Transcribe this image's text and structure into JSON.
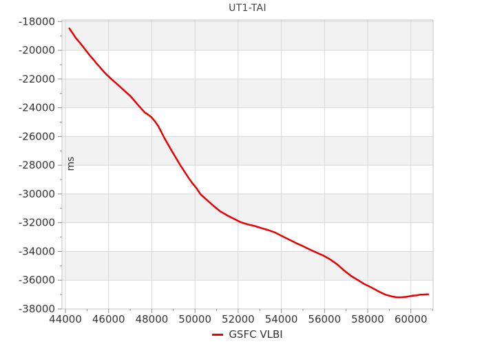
{
  "title": "UT1-TAI",
  "colors": {
    "background": "#ffffff",
    "band_gray": "#f2f2f2",
    "gridline": "#d8d8d8",
    "plot_border": "#c6c6c6",
    "tick_mark": "#8c8c8c",
    "tick_text": "#333333",
    "title_text": "#3f3f3f",
    "series_red": "#e80000"
  },
  "chart_data": {
    "type": "line",
    "title": "UT1-TAI",
    "xlabel": "",
    "ylabel": "ms",
    "grid": "major",
    "legend_position": "bottom-center",
    "legend": [
      {
        "label": "GSFC VLBI",
        "color": "#e80000"
      }
    ],
    "xlim": [
      43840,
      61030
    ],
    "ylim": [
      -38000,
      -17890
    ],
    "x_major_ticks": [
      44000,
      46000,
      48000,
      50000,
      52000,
      54000,
      56000,
      58000,
      60000
    ],
    "x_tick_labels": [
      "44000",
      "46000",
      "48000",
      "50000",
      "52000",
      "54000",
      "56000",
      "58000",
      "60000"
    ],
    "x_minor_ticks": [
      45000,
      47000,
      49000,
      51000,
      53000,
      55000,
      57000,
      59000,
      61000
    ],
    "y_major_ticks": [
      -18000,
      -20000,
      -22000,
      -24000,
      -26000,
      -28000,
      -30000,
      -32000,
      -34000,
      -36000,
      -38000
    ],
    "y_tick_labels": [
      "-18000",
      "-20000",
      "-22000",
      "-24000",
      "-26000",
      "-28000",
      "-30000",
      "-32000",
      "-34000",
      "-36000",
      "-38000"
    ],
    "y_minor_ticks": [
      -19000,
      -21000,
      -23000,
      -25000,
      -27000,
      -29000,
      -31000,
      -33000,
      -35000,
      -37000
    ],
    "shaded_bands": [
      [
        -20000,
        -17890
      ],
      [
        -24000,
        -22000
      ],
      [
        -28000,
        -26000
      ],
      [
        -32000,
        -30000
      ],
      [
        -36000,
        -34000
      ]
    ],
    "series": [
      {
        "name": "GSFC VLBI",
        "color": "#e80000",
        "points": [
          [
            44180,
            -18480
          ],
          [
            44350,
            -18850
          ],
          [
            44480,
            -19150
          ],
          [
            44650,
            -19440
          ],
          [
            44800,
            -19720
          ],
          [
            44960,
            -20030
          ],
          [
            45120,
            -20340
          ],
          [
            45280,
            -20620
          ],
          [
            45430,
            -20900
          ],
          [
            45600,
            -21180
          ],
          [
            45750,
            -21450
          ],
          [
            45900,
            -21680
          ],
          [
            46070,
            -21920
          ],
          [
            46230,
            -22140
          ],
          [
            46390,
            -22350
          ],
          [
            46550,
            -22570
          ],
          [
            46710,
            -22790
          ],
          [
            46870,
            -23000
          ],
          [
            47030,
            -23220
          ],
          [
            47190,
            -23500
          ],
          [
            47350,
            -23790
          ],
          [
            47510,
            -24050
          ],
          [
            47670,
            -24320
          ],
          [
            47830,
            -24480
          ],
          [
            47980,
            -24650
          ],
          [
            48140,
            -24940
          ],
          [
            48300,
            -25270
          ],
          [
            48560,
            -26040
          ],
          [
            48750,
            -26550
          ],
          [
            48940,
            -27040
          ],
          [
            49130,
            -27520
          ],
          [
            49320,
            -28000
          ],
          [
            49530,
            -28480
          ],
          [
            49740,
            -28960
          ],
          [
            49900,
            -29290
          ],
          [
            50060,
            -29580
          ],
          [
            50250,
            -30010
          ],
          [
            50530,
            -30390
          ],
          [
            50850,
            -30820
          ],
          [
            51170,
            -31210
          ],
          [
            51490,
            -31490
          ],
          [
            51810,
            -31730
          ],
          [
            52130,
            -31970
          ],
          [
            52450,
            -32120
          ],
          [
            52770,
            -32230
          ],
          [
            53080,
            -32380
          ],
          [
            53400,
            -32520
          ],
          [
            53720,
            -32690
          ],
          [
            54040,
            -32940
          ],
          [
            54360,
            -33180
          ],
          [
            54680,
            -33420
          ],
          [
            55000,
            -33630
          ],
          [
            55320,
            -33870
          ],
          [
            55630,
            -34080
          ],
          [
            55950,
            -34290
          ],
          [
            56270,
            -34560
          ],
          [
            56590,
            -34900
          ],
          [
            56910,
            -35330
          ],
          [
            57230,
            -35700
          ],
          [
            57550,
            -36000
          ],
          [
            57870,
            -36290
          ],
          [
            58190,
            -36520
          ],
          [
            58500,
            -36780
          ],
          [
            58820,
            -37010
          ],
          [
            59140,
            -37140
          ],
          [
            59300,
            -37180
          ],
          [
            59460,
            -37200
          ],
          [
            59620,
            -37180
          ],
          [
            59780,
            -37160
          ],
          [
            59940,
            -37120
          ],
          [
            60100,
            -37070
          ],
          [
            60260,
            -37060
          ],
          [
            60420,
            -37010
          ],
          [
            60580,
            -37000
          ],
          [
            60800,
            -36980
          ]
        ]
      }
    ]
  }
}
